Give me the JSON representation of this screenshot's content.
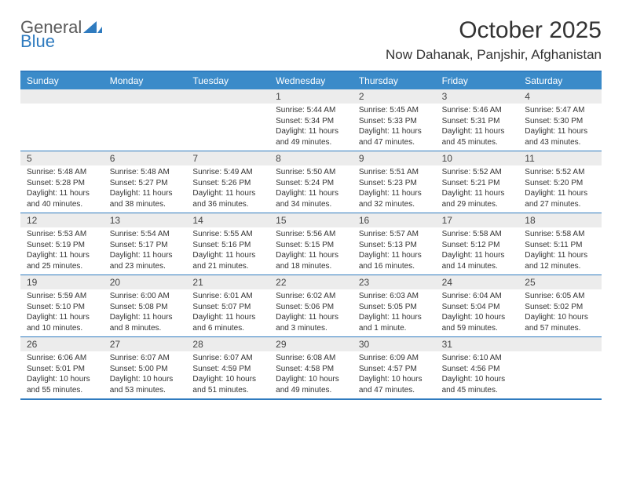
{
  "logo": {
    "line1": "General",
    "line2": "Blue",
    "tri_color": "#2f7bbf",
    "text_gray": "#5a5a5a"
  },
  "title": "October 2025",
  "location": "Now Dahanak, Panjshir, Afghanistan",
  "colors": {
    "accent": "#2f7bbf",
    "header_bg": "#3b8bc9",
    "header_fg": "#ffffff",
    "strip_bg": "#ececec",
    "text": "#333333",
    "background": "#ffffff"
  },
  "day_names": [
    "Sunday",
    "Monday",
    "Tuesday",
    "Wednesday",
    "Thursday",
    "Friday",
    "Saturday"
  ],
  "weeks": [
    {
      "nums": [
        "",
        "",
        "",
        "1",
        "2",
        "3",
        "4"
      ],
      "cells": [
        {
          "sunrise": "",
          "sunset": "",
          "daylight": ""
        },
        {
          "sunrise": "",
          "sunset": "",
          "daylight": ""
        },
        {
          "sunrise": "",
          "sunset": "",
          "daylight": ""
        },
        {
          "sunrise": "Sunrise: 5:44 AM",
          "sunset": "Sunset: 5:34 PM",
          "daylight": "Daylight: 11 hours and 49 minutes."
        },
        {
          "sunrise": "Sunrise: 5:45 AM",
          "sunset": "Sunset: 5:33 PM",
          "daylight": "Daylight: 11 hours and 47 minutes."
        },
        {
          "sunrise": "Sunrise: 5:46 AM",
          "sunset": "Sunset: 5:31 PM",
          "daylight": "Daylight: 11 hours and 45 minutes."
        },
        {
          "sunrise": "Sunrise: 5:47 AM",
          "sunset": "Sunset: 5:30 PM",
          "daylight": "Daylight: 11 hours and 43 minutes."
        }
      ]
    },
    {
      "nums": [
        "5",
        "6",
        "7",
        "8",
        "9",
        "10",
        "11"
      ],
      "cells": [
        {
          "sunrise": "Sunrise: 5:48 AM",
          "sunset": "Sunset: 5:28 PM",
          "daylight": "Daylight: 11 hours and 40 minutes."
        },
        {
          "sunrise": "Sunrise: 5:48 AM",
          "sunset": "Sunset: 5:27 PM",
          "daylight": "Daylight: 11 hours and 38 minutes."
        },
        {
          "sunrise": "Sunrise: 5:49 AM",
          "sunset": "Sunset: 5:26 PM",
          "daylight": "Daylight: 11 hours and 36 minutes."
        },
        {
          "sunrise": "Sunrise: 5:50 AM",
          "sunset": "Sunset: 5:24 PM",
          "daylight": "Daylight: 11 hours and 34 minutes."
        },
        {
          "sunrise": "Sunrise: 5:51 AM",
          "sunset": "Sunset: 5:23 PM",
          "daylight": "Daylight: 11 hours and 32 minutes."
        },
        {
          "sunrise": "Sunrise: 5:52 AM",
          "sunset": "Sunset: 5:21 PM",
          "daylight": "Daylight: 11 hours and 29 minutes."
        },
        {
          "sunrise": "Sunrise: 5:52 AM",
          "sunset": "Sunset: 5:20 PM",
          "daylight": "Daylight: 11 hours and 27 minutes."
        }
      ]
    },
    {
      "nums": [
        "12",
        "13",
        "14",
        "15",
        "16",
        "17",
        "18"
      ],
      "cells": [
        {
          "sunrise": "Sunrise: 5:53 AM",
          "sunset": "Sunset: 5:19 PM",
          "daylight": "Daylight: 11 hours and 25 minutes."
        },
        {
          "sunrise": "Sunrise: 5:54 AM",
          "sunset": "Sunset: 5:17 PM",
          "daylight": "Daylight: 11 hours and 23 minutes."
        },
        {
          "sunrise": "Sunrise: 5:55 AM",
          "sunset": "Sunset: 5:16 PM",
          "daylight": "Daylight: 11 hours and 21 minutes."
        },
        {
          "sunrise": "Sunrise: 5:56 AM",
          "sunset": "Sunset: 5:15 PM",
          "daylight": "Daylight: 11 hours and 18 minutes."
        },
        {
          "sunrise": "Sunrise: 5:57 AM",
          "sunset": "Sunset: 5:13 PM",
          "daylight": "Daylight: 11 hours and 16 minutes."
        },
        {
          "sunrise": "Sunrise: 5:58 AM",
          "sunset": "Sunset: 5:12 PM",
          "daylight": "Daylight: 11 hours and 14 minutes."
        },
        {
          "sunrise": "Sunrise: 5:58 AM",
          "sunset": "Sunset: 5:11 PM",
          "daylight": "Daylight: 11 hours and 12 minutes."
        }
      ]
    },
    {
      "nums": [
        "19",
        "20",
        "21",
        "22",
        "23",
        "24",
        "25"
      ],
      "cells": [
        {
          "sunrise": "Sunrise: 5:59 AM",
          "sunset": "Sunset: 5:10 PM",
          "daylight": "Daylight: 11 hours and 10 minutes."
        },
        {
          "sunrise": "Sunrise: 6:00 AM",
          "sunset": "Sunset: 5:08 PM",
          "daylight": "Daylight: 11 hours and 8 minutes."
        },
        {
          "sunrise": "Sunrise: 6:01 AM",
          "sunset": "Sunset: 5:07 PM",
          "daylight": "Daylight: 11 hours and 6 minutes."
        },
        {
          "sunrise": "Sunrise: 6:02 AM",
          "sunset": "Sunset: 5:06 PM",
          "daylight": "Daylight: 11 hours and 3 minutes."
        },
        {
          "sunrise": "Sunrise: 6:03 AM",
          "sunset": "Sunset: 5:05 PM",
          "daylight": "Daylight: 11 hours and 1 minute."
        },
        {
          "sunrise": "Sunrise: 6:04 AM",
          "sunset": "Sunset: 5:04 PM",
          "daylight": "Daylight: 10 hours and 59 minutes."
        },
        {
          "sunrise": "Sunrise: 6:05 AM",
          "sunset": "Sunset: 5:02 PM",
          "daylight": "Daylight: 10 hours and 57 minutes."
        }
      ]
    },
    {
      "nums": [
        "26",
        "27",
        "28",
        "29",
        "30",
        "31",
        ""
      ],
      "cells": [
        {
          "sunrise": "Sunrise: 6:06 AM",
          "sunset": "Sunset: 5:01 PM",
          "daylight": "Daylight: 10 hours and 55 minutes."
        },
        {
          "sunrise": "Sunrise: 6:07 AM",
          "sunset": "Sunset: 5:00 PM",
          "daylight": "Daylight: 10 hours and 53 minutes."
        },
        {
          "sunrise": "Sunrise: 6:07 AM",
          "sunset": "Sunset: 4:59 PM",
          "daylight": "Daylight: 10 hours and 51 minutes."
        },
        {
          "sunrise": "Sunrise: 6:08 AM",
          "sunset": "Sunset: 4:58 PM",
          "daylight": "Daylight: 10 hours and 49 minutes."
        },
        {
          "sunrise": "Sunrise: 6:09 AM",
          "sunset": "Sunset: 4:57 PM",
          "daylight": "Daylight: 10 hours and 47 minutes."
        },
        {
          "sunrise": "Sunrise: 6:10 AM",
          "sunset": "Sunset: 4:56 PM",
          "daylight": "Daylight: 10 hours and 45 minutes."
        },
        {
          "sunrise": "",
          "sunset": "",
          "daylight": ""
        }
      ]
    }
  ]
}
